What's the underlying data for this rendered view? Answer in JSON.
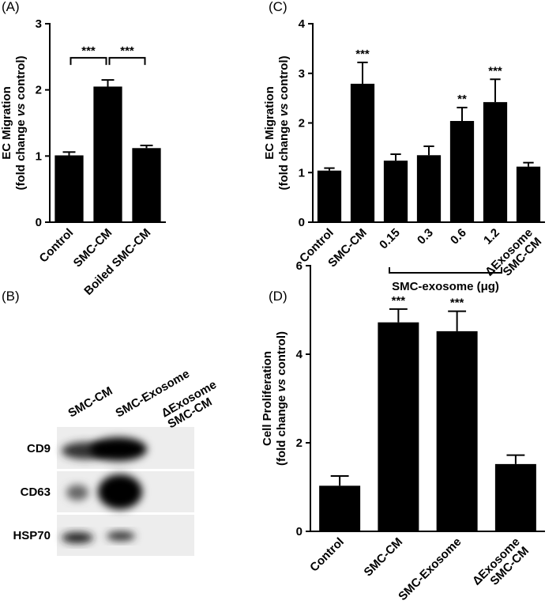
{
  "chart_data": [
    {
      "type": "bar",
      "panel_label": "(A)",
      "y_label": [
        "EC Migration",
        [
          "(fold change ",
          "vs",
          " control)"
        ]
      ],
      "categories": [
        "Control",
        "SMC-CM",
        "Boiled SMC-CM"
      ],
      "values": [
        1.01,
        2.05,
        1.12
      ],
      "errors": [
        0.05,
        0.1,
        0.04
      ],
      "color": "#000000",
      "ylim": [
        0,
        3
      ],
      "yticks": [
        0,
        1,
        2,
        3
      ],
      "significance": [
        {
          "from": "Control",
          "to": "SMC-CM",
          "label": "***"
        },
        {
          "from": "SMC-CM",
          "to": "Boiled SMC-CM",
          "label": "***"
        }
      ]
    },
    {
      "type": "bar",
      "panel_label": "(C)",
      "y_label": [
        "EC Migration",
        [
          "(fold change ",
          "vs",
          " control)"
        ]
      ],
      "categories": [
        "Control",
        "SMC-CM",
        "0.15",
        "0.3",
        "0.6",
        "1.2",
        [
          "ΔExosome",
          "SMC-CM"
        ]
      ],
      "values": [
        1.04,
        2.79,
        1.24,
        1.35,
        2.04,
        2.42,
        1.12
      ],
      "errors": [
        0.05,
        0.43,
        0.13,
        0.18,
        0.27,
        0.46,
        0.08
      ],
      "color": "#000000",
      "ylim": [
        0,
        4
      ],
      "yticks": [
        0,
        1,
        2,
        3,
        4
      ],
      "annotations": [
        null,
        "***",
        null,
        null,
        "**",
        "***",
        null
      ],
      "group": {
        "from": "0.15",
        "to": "1.2",
        "label": "SMC-exosome (μg)"
      }
    },
    {
      "type": "bar",
      "panel_label": "(D)",
      "y_label": [
        "Cell Proliferation",
        [
          "(fold change ",
          "vs",
          " control)"
        ]
      ],
      "categories": [
        "Control",
        "SMC-CM",
        "SMC-Exosome",
        [
          "ΔExosome",
          "SMC-CM"
        ]
      ],
      "values": [
        1.03,
        4.72,
        4.52,
        1.52
      ],
      "errors": [
        0.22,
        0.3,
        0.45,
        0.2
      ],
      "color": "#000000",
      "ylim": [
        0,
        6
      ],
      "yticks": [
        0,
        2,
        4,
        6
      ],
      "annotations": [
        null,
        "***",
        "***",
        null
      ]
    }
  ],
  "blot": {
    "panel_label": "(B)",
    "lanes": [
      "SMC-CM",
      "SMC-Exosome",
      [
        "ΔExosome",
        "SMC-CM"
      ]
    ],
    "rows": [
      "CD9",
      "CD63",
      "HSP70"
    ]
  }
}
